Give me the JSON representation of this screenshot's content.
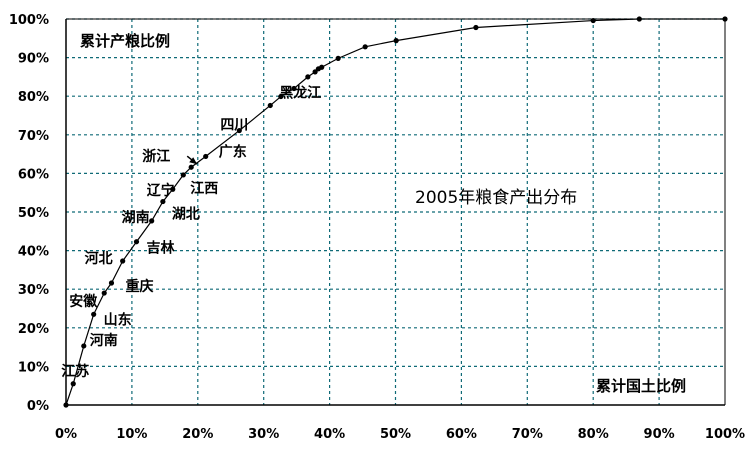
{
  "chart_data": {
    "type": "line",
    "title": "2005年粮食产出分布",
    "ylabel": "累计产粮比例",
    "xlabel": "累计国土比例",
    "xlim": [
      0,
      100
    ],
    "ylim": [
      0,
      100
    ],
    "x_ticks": [
      "0%",
      "10%",
      "20%",
      "30%",
      "40%",
      "50%",
      "60%",
      "70%",
      "80%",
      "90%",
      "100%"
    ],
    "y_ticks": [
      "0%",
      "10%",
      "20%",
      "30%",
      "40%",
      "50%",
      "60%",
      "70%",
      "80%",
      "90%",
      "100%"
    ],
    "grid": true,
    "colors": {
      "line": "#000000",
      "grid": "#0f6a77",
      "axis": "#000000"
    },
    "series": [
      {
        "points": [
          [
            0,
            0
          ],
          [
            1.1,
            5.5
          ],
          [
            2.7,
            15.3
          ],
          [
            4.2,
            23.5
          ],
          [
            5.8,
            29.0
          ],
          [
            6.9,
            31.6
          ],
          [
            8.6,
            37.3
          ],
          [
            10.7,
            42.3
          ],
          [
            13.0,
            47.7
          ],
          [
            14.7,
            52.7
          ],
          [
            16.2,
            55.9
          ],
          [
            17.8,
            59.6
          ],
          [
            19.0,
            61.6
          ],
          [
            21.2,
            64.4
          ],
          [
            26.3,
            71.1
          ],
          [
            31.0,
            77.6
          ],
          [
            32.6,
            79.9
          ],
          [
            34.6,
            82.0
          ],
          [
            36.7,
            85.0
          ],
          [
            37.8,
            86.3
          ],
          [
            38.3,
            87.1
          ],
          [
            38.8,
            87.5
          ],
          [
            41.3,
            89.8
          ],
          [
            45.4,
            92.8
          ],
          [
            50.1,
            94.4
          ],
          [
            62.2,
            97.8
          ],
          [
            80.0,
            99.6
          ],
          [
            87.0,
            100
          ],
          [
            100,
            100
          ]
        ]
      }
    ],
    "annotations": [
      {
        "text": "江苏",
        "x": 1.1,
        "y": 5.5
      },
      {
        "text": "河南",
        "x": 2.7,
        "y": 15.3
      },
      {
        "text": "山东",
        "x": 4.2,
        "y": 23.5
      },
      {
        "text": "安徽",
        "x": 5.8,
        "y": 29.0
      },
      {
        "text": "重庆",
        "x": 6.9,
        "y": 31.6
      },
      {
        "text": "河北",
        "x": 8.6,
        "y": 37.3
      },
      {
        "text": "吉林",
        "x": 10.7,
        "y": 42.3
      },
      {
        "text": "湖南",
        "x": 13.0,
        "y": 47.7
      },
      {
        "text": "湖北",
        "x": 14.7,
        "y": 52.7
      },
      {
        "text": "辽宁",
        "x": 16.2,
        "y": 55.9
      },
      {
        "text": "江西",
        "x": 17.8,
        "y": 59.6
      },
      {
        "text": "浙江",
        "x": 19.0,
        "y": 61.6
      },
      {
        "text": "广东",
        "x": 21.2,
        "y": 64.4
      },
      {
        "text": "四川",
        "x": 26.3,
        "y": 71.1
      },
      {
        "text": "黑龙江",
        "x": 31.0,
        "y": 77.6
      }
    ]
  }
}
